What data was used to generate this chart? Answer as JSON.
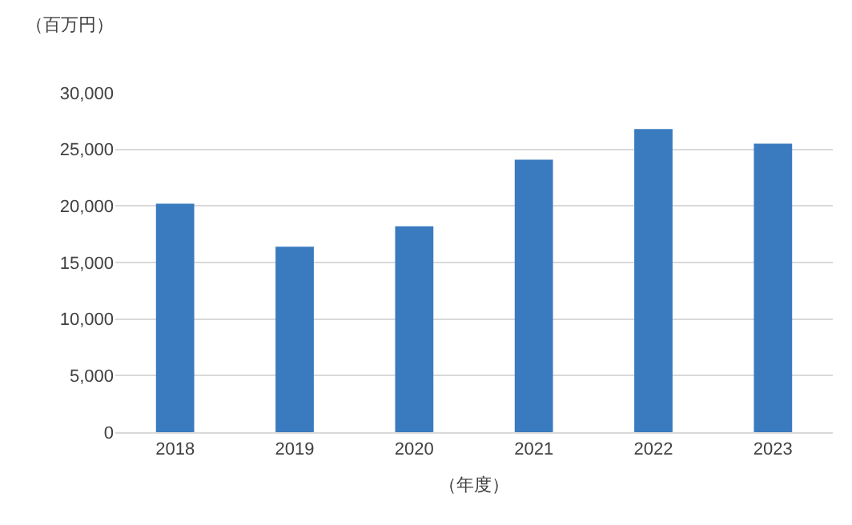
{
  "chart_data": {
    "type": "bar",
    "ylabel": "（百万円）",
    "xlabel": "（年度）",
    "categories": [
      "2018",
      "2019",
      "2020",
      "2021",
      "2022",
      "2023"
    ],
    "values": [
      20200,
      16400,
      18200,
      24100,
      26800,
      25500
    ],
    "color": "#3a7bbf",
    "ylim": [
      0,
      30000
    ],
    "yticks": [
      {
        "value": 0,
        "label": "0"
      },
      {
        "value": 5000,
        "label": "5,000"
      },
      {
        "value": 10000,
        "label": "10,000"
      },
      {
        "value": 15000,
        "label": "15,000"
      },
      {
        "value": 20000,
        "label": "20,000"
      },
      {
        "value": 25000,
        "label": "25,000"
      },
      {
        "value": 30000,
        "label": "30,000"
      }
    ],
    "grid": "y"
  }
}
